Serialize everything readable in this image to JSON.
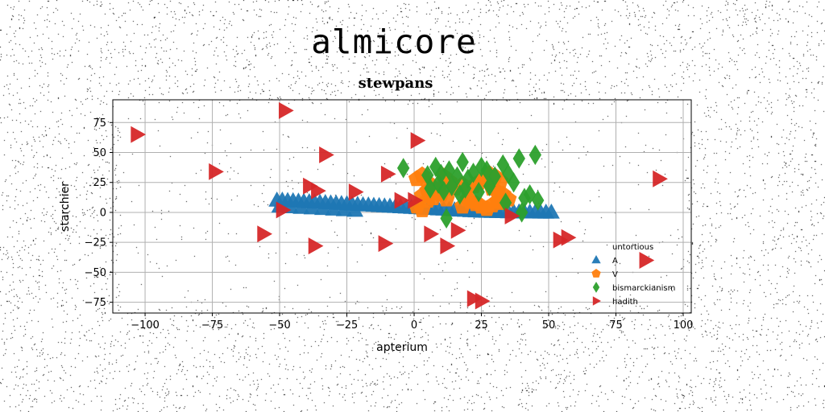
{
  "banner": "almicore",
  "chart_data": {
    "type": "scatter",
    "title": "stewpans",
    "xlabel": "apterium",
    "ylabel": "starchier",
    "xlim": [
      -112,
      103
    ],
    "ylim": [
      -84,
      94
    ],
    "xticks": [
      -100,
      -75,
      -50,
      -25,
      0,
      25,
      50,
      75,
      100
    ],
    "yticks": [
      -75,
      -50,
      -25,
      0,
      25,
      50,
      75
    ],
    "xtick_labels": [
      "−100",
      "−75",
      "−50",
      "−25",
      "0",
      "25",
      "50",
      "75",
      "100"
    ],
    "ytick_labels": [
      "−75",
      "−50",
      "−25",
      "0",
      "25",
      "50",
      "75"
    ],
    "grid": true,
    "legend": {
      "title": "untortious",
      "position": "lower-right"
    },
    "series": [
      {
        "name": "A",
        "marker": "triangle-up",
        "color": "#1f77b4",
        "points": [
          [
            -51,
            10
          ],
          [
            -49,
            10
          ],
          [
            -47,
            9.7
          ],
          [
            -45,
            9.5
          ],
          [
            -43,
            9.2
          ],
          [
            -41,
            9
          ],
          [
            -39,
            8.7
          ],
          [
            -37,
            8.5
          ],
          [
            -35,
            8.2
          ],
          [
            -33,
            8
          ],
          [
            -31,
            7.7
          ],
          [
            -29,
            7.5
          ],
          [
            -27,
            7.2
          ],
          [
            -25,
            7
          ],
          [
            -23,
            6.7
          ],
          [
            -21,
            6.5
          ],
          [
            -19,
            6.2
          ],
          [
            -17,
            6
          ],
          [
            -15,
            5.7
          ],
          [
            -13,
            5.5
          ],
          [
            -11,
            5.2
          ],
          [
            -9,
            5
          ],
          [
            -7,
            4.7
          ],
          [
            -5,
            4.5
          ],
          [
            -3,
            4.2
          ],
          [
            -1,
            4
          ],
          [
            1,
            3.7
          ],
          [
            3,
            3.5
          ],
          [
            5,
            3.2
          ],
          [
            7,
            3
          ],
          [
            9,
            2.7
          ],
          [
            11,
            2.5
          ],
          [
            13,
            2.2
          ],
          [
            15,
            2
          ],
          [
            17,
            1.7
          ],
          [
            19,
            1.5
          ],
          [
            21,
            1.2
          ],
          [
            23,
            1
          ],
          [
            25,
            0.8
          ],
          [
            27,
            0.7
          ],
          [
            29,
            0.6
          ],
          [
            31,
            0.5
          ],
          [
            33,
            0.4
          ],
          [
            35,
            0.3
          ],
          [
            37,
            0.3
          ],
          [
            39,
            0.2
          ],
          [
            41,
            0.2
          ],
          [
            43,
            0.1
          ],
          [
            45,
            0.1
          ],
          [
            47,
            0
          ],
          [
            49,
            0
          ],
          [
            51,
            0
          ],
          [
            -50,
            5
          ],
          [
            -46,
            4.5
          ],
          [
            -42,
            4
          ],
          [
            -38,
            3.5
          ],
          [
            -34,
            3
          ],
          [
            -30,
            2.5
          ],
          [
            -26,
            2
          ],
          [
            -22,
            1.5
          ]
        ]
      },
      {
        "name": "V",
        "marker": "pentagon",
        "color": "#ff7f0e",
        "points": [
          [
            1,
            28
          ],
          [
            3,
            31
          ],
          [
            5,
            25
          ],
          [
            7,
            21
          ],
          [
            9,
            18
          ],
          [
            11,
            30
          ],
          [
            13,
            26
          ],
          [
            3,
            14
          ],
          [
            5,
            10
          ],
          [
            7,
            12
          ],
          [
            10,
            15
          ],
          [
            12,
            11
          ],
          [
            1,
            5
          ],
          [
            3,
            2
          ],
          [
            15,
            20
          ],
          [
            18,
            23
          ],
          [
            20,
            19
          ],
          [
            22,
            22
          ],
          [
            24,
            25
          ],
          [
            26,
            28
          ],
          [
            28,
            32
          ],
          [
            30,
            30
          ],
          [
            32,
            26
          ],
          [
            29,
            20
          ],
          [
            31,
            17
          ],
          [
            33,
            15
          ],
          [
            21,
            9
          ],
          [
            23,
            7
          ],
          [
            25,
            5
          ],
          [
            27,
            3
          ],
          [
            29,
            6
          ],
          [
            31,
            9
          ],
          [
            33,
            8
          ],
          [
            35,
            11
          ],
          [
            18,
            5
          ],
          [
            20,
            11
          ],
          [
            5,
            18
          ]
        ]
      },
      {
        "name": "bismarckianism",
        "marker": "diamond",
        "color": "#2ca02c",
        "points": [
          [
            -4,
            37
          ],
          [
            5,
            31
          ],
          [
            8,
            38
          ],
          [
            10,
            32
          ],
          [
            13,
            35
          ],
          [
            16,
            30
          ],
          [
            18,
            42
          ],
          [
            20,
            28
          ],
          [
            22,
            33
          ],
          [
            25,
            38
          ],
          [
            27,
            35
          ],
          [
            30,
            30
          ],
          [
            33,
            40
          ],
          [
            35,
            32
          ],
          [
            37,
            25
          ],
          [
            39,
            45
          ],
          [
            41,
            12
          ],
          [
            43,
            15
          ],
          [
            45,
            48
          ],
          [
            46,
            10
          ],
          [
            6,
            20
          ],
          [
            9,
            24
          ],
          [
            11,
            18
          ],
          [
            14,
            22
          ],
          [
            17,
            15
          ],
          [
            19,
            20
          ],
          [
            24,
            17
          ],
          [
            28,
            22
          ],
          [
            40,
            0
          ],
          [
            12,
            -5
          ],
          [
            34,
            8
          ]
        ]
      },
      {
        "name": "hadith",
        "marker": "triangle-right",
        "color": "#d62728",
        "points": [
          [
            -103,
            65
          ],
          [
            -48,
            85
          ],
          [
            -74,
            34
          ],
          [
            -33,
            48
          ],
          [
            1,
            60
          ],
          [
            -39,
            22
          ],
          [
            -36,
            18
          ],
          [
            -22,
            17
          ],
          [
            -10,
            32
          ],
          [
            -5,
            10
          ],
          [
            -49,
            2
          ],
          [
            -56,
            -18
          ],
          [
            -37,
            -28
          ],
          [
            -11,
            -26
          ],
          [
            0,
            10
          ],
          [
            6,
            -18
          ],
          [
            12,
            -28
          ],
          [
            16,
            -15
          ],
          [
            36,
            -3
          ],
          [
            54,
            -23
          ],
          [
            57,
            -21
          ],
          [
            22,
            -72
          ],
          [
            25,
            -74
          ],
          [
            91,
            28
          ],
          [
            86,
            -40
          ]
        ]
      }
    ]
  }
}
